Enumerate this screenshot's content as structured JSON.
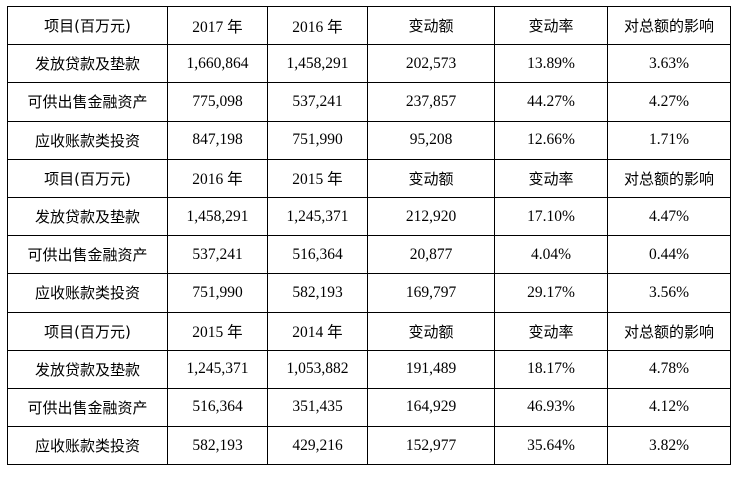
{
  "sections": [
    {
      "header": [
        "项目(百万元)",
        "2017 年",
        "2016 年",
        "变动额",
        "变动率",
        "对总额的影响"
      ],
      "rows": [
        [
          "发放贷款及垫款",
          "1,660,864",
          "1,458,291",
          "202,573",
          "13.89%",
          "3.63%"
        ],
        [
          "可供出售金融资产",
          "775,098",
          "537,241",
          "237,857",
          "44.27%",
          "4.27%"
        ],
        [
          "应收账款类投资",
          "847,198",
          "751,990",
          "95,208",
          "12.66%",
          "1.71%"
        ]
      ]
    },
    {
      "header": [
        "项目(百万元)",
        "2016 年",
        "2015 年",
        "变动额",
        "变动率",
        "对总额的影响"
      ],
      "rows": [
        [
          "发放贷款及垫款",
          "1,458,291",
          "1,245,371",
          "212,920",
          "17.10%",
          "4.47%"
        ],
        [
          "可供出售金融资产",
          "537,241",
          "516,364",
          "20,877",
          "4.04%",
          "0.44%"
        ],
        [
          "应收账款类投资",
          "751,990",
          "582,193",
          "169,797",
          "29.17%",
          "3.56%"
        ]
      ]
    },
    {
      "header": [
        "项目(百万元)",
        "2015 年",
        "2014 年",
        "变动额",
        "变动率",
        "对总额的影响"
      ],
      "rows": [
        [
          "发放贷款及垫款",
          "1,245,371",
          "1,053,882",
          "191,489",
          "18.17%",
          "4.78%"
        ],
        [
          "可供出售金融资产",
          "516,364",
          "351,435",
          "164,929",
          "46.93%",
          "4.12%"
        ],
        [
          "应收账款类投资",
          "582,193",
          "429,216",
          "152,977",
          "35.64%",
          "3.82%"
        ]
      ]
    }
  ]
}
